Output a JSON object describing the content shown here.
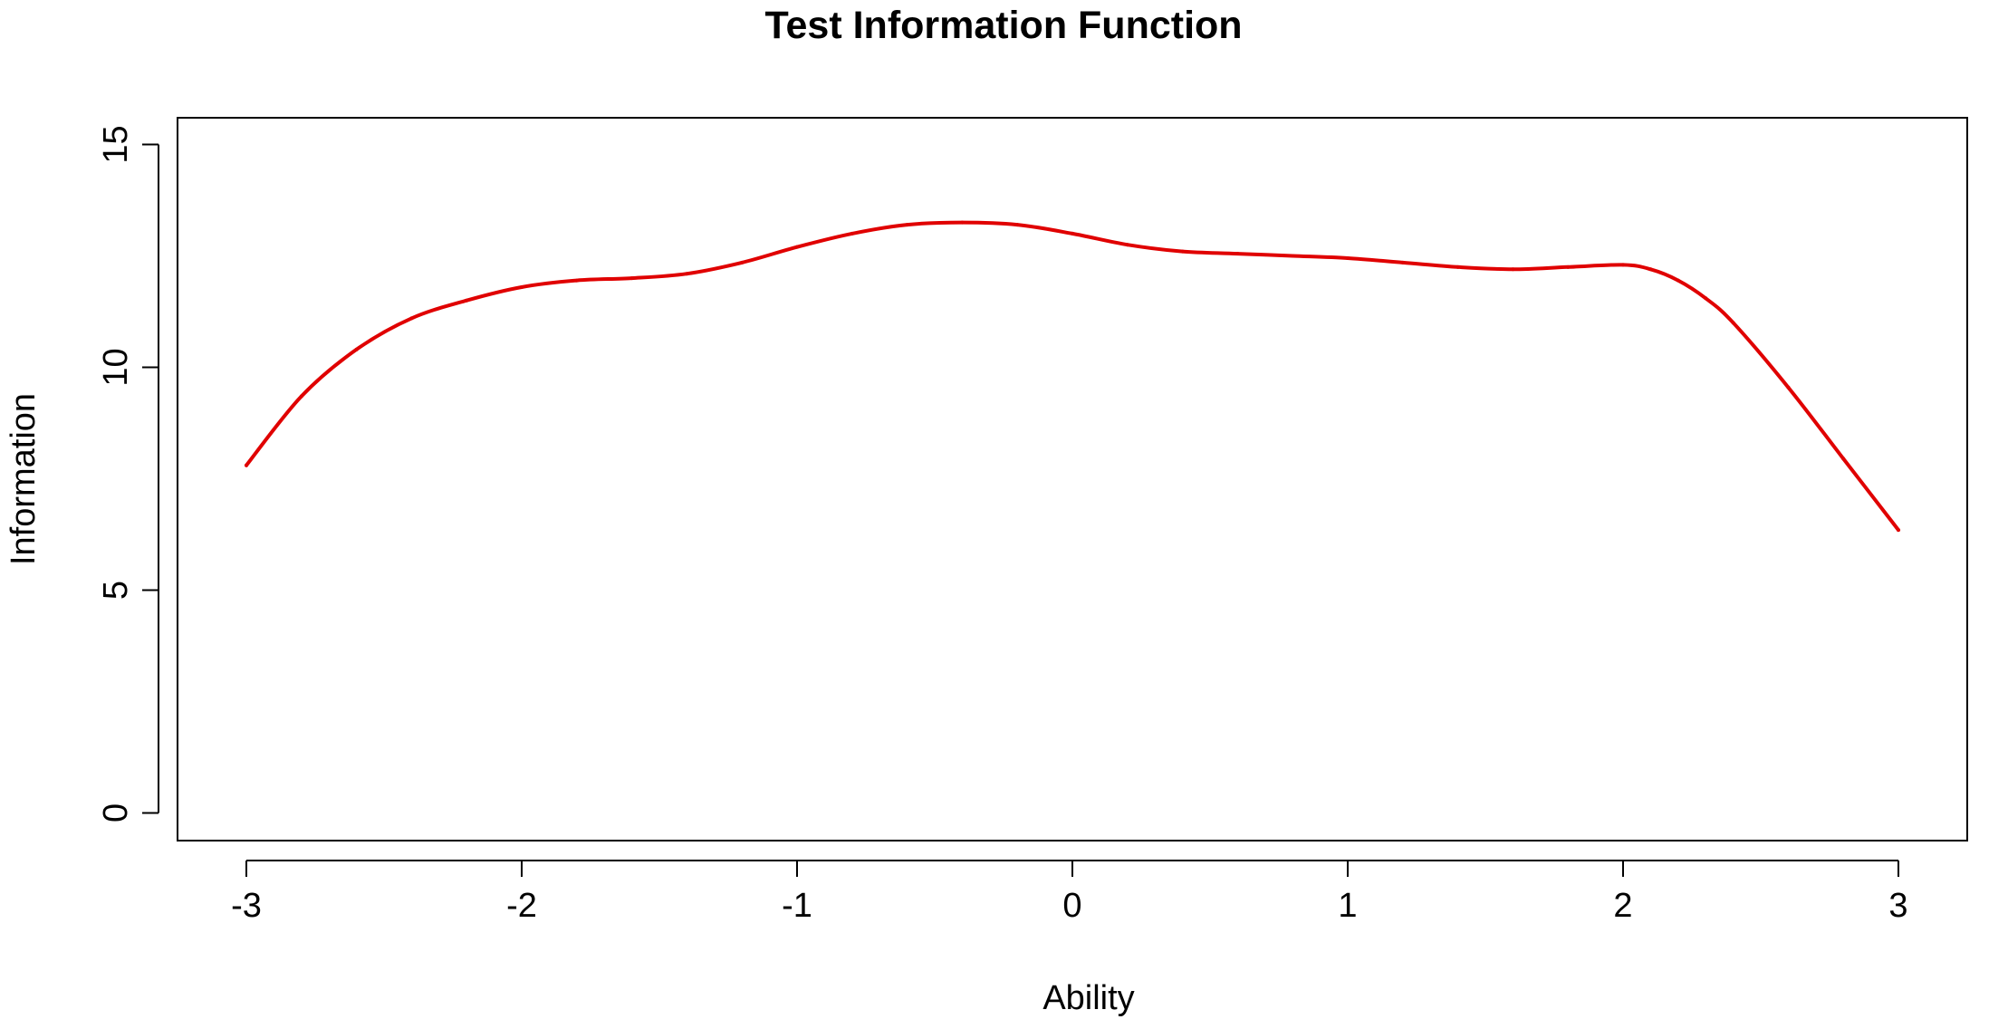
{
  "chart_data": {
    "type": "line",
    "title": "Test Information Function",
    "xlabel": "Ability",
    "ylabel": "Information",
    "xlim": [
      -3.25,
      3.25
    ],
    "ylim": [
      -0.62,
      15.6
    ],
    "x_ticks": [
      -3,
      -2,
      -1,
      0,
      1,
      2,
      3
    ],
    "y_ticks": [
      0,
      5,
      10,
      15
    ],
    "x_tick_labels": [
      "-3",
      "-2",
      "-1",
      "0",
      "1",
      "2",
      "3"
    ],
    "y_tick_labels": [
      "0",
      "5",
      "10",
      "15"
    ],
    "grid": false,
    "legend": "none",
    "series": [
      {
        "color": "#e00000",
        "x": [
          -3.0,
          -2.8,
          -2.6,
          -2.4,
          -2.2,
          -2.0,
          -1.8,
          -1.6,
          -1.4,
          -1.2,
          -1.0,
          -0.8,
          -0.6,
          -0.4,
          -0.2,
          0.0,
          0.2,
          0.4,
          0.6,
          0.8,
          1.0,
          1.2,
          1.4,
          1.6,
          1.8,
          2.0,
          2.1,
          2.2,
          2.3,
          2.4,
          2.6,
          2.8,
          3.0
        ],
        "y": [
          7.8,
          9.35,
          10.4,
          11.1,
          11.5,
          11.8,
          11.95,
          12.0,
          12.1,
          12.35,
          12.7,
          13.0,
          13.2,
          13.25,
          13.2,
          13.0,
          12.75,
          12.6,
          12.55,
          12.5,
          12.45,
          12.35,
          12.25,
          12.2,
          12.25,
          12.3,
          12.2,
          11.95,
          11.55,
          11.0,
          9.55,
          7.95,
          6.35
        ]
      }
    ]
  }
}
